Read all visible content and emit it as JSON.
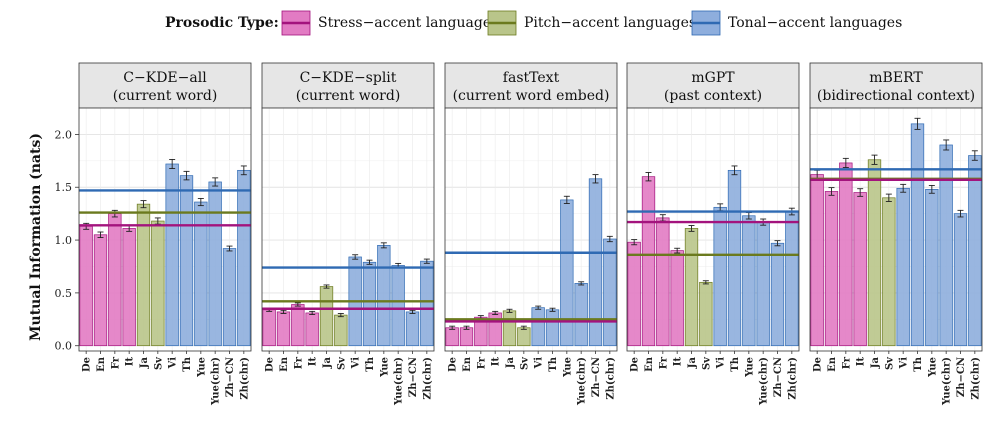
{
  "legend": {
    "title": "Prosodic Type:",
    "entries": [
      {
        "key": "stress",
        "label": "Stress−accent languages",
        "fill": "#e27bc3",
        "line": "#a3137d"
      },
      {
        "key": "pitch",
        "label": "Pitch−accent languages",
        "fill": "#b9c58a",
        "line": "#6b7a1e"
      },
      {
        "key": "tonal",
        "label": "Tonal−accent languages",
        "fill": "#8eaedd",
        "line": "#2f6ab3"
      }
    ]
  },
  "chart_data": {
    "type": "bar",
    "ylabel": "Mutual Information (nats)",
    "ylim": [
      -0.05,
      2.25
    ],
    "yticks": [
      0.0,
      0.5,
      1.0,
      1.5,
      2.0
    ],
    "ytick_labels": [
      "0.0",
      "0.5",
      "1.0",
      "1.5",
      "2.0"
    ],
    "categories": [
      "De",
      "En",
      "Fr",
      "It",
      "Ja",
      "Sv",
      "Vi",
      "Th",
      "Yue",
      "Yue(chr)",
      "Zh−CN",
      "Zh(chr)"
    ],
    "panels": [
      {
        "title_line1": "C−KDE−all",
        "title_line2": "(current word)",
        "bars": [
          {
            "cat": "De",
            "value": 1.13,
            "type": "stress"
          },
          {
            "cat": "En",
            "value": 1.05,
            "type": "stress"
          },
          {
            "cat": "Fr",
            "value": 1.25,
            "type": "stress"
          },
          {
            "cat": "It",
            "value": 1.11,
            "type": "stress"
          },
          {
            "cat": "Ja",
            "value": 1.34,
            "type": "pitch"
          },
          {
            "cat": "Sv",
            "value": 1.18,
            "type": "pitch"
          },
          {
            "cat": "Vi",
            "value": 1.72,
            "type": "tonal"
          },
          {
            "cat": "Th",
            "value": 1.61,
            "type": "tonal"
          },
          {
            "cat": "Yue",
            "value": 1.36,
            "type": "tonal"
          },
          {
            "cat": "Yue(chr)",
            "value": 1.55,
            "type": "tonal"
          },
          {
            "cat": "Zh−CN",
            "value": 0.92,
            "type": "tonal"
          },
          {
            "cat": "Zh(chr)",
            "value": 1.66,
            "type": "tonal"
          }
        ],
        "means": {
          "stress": 1.14,
          "pitch": 1.26,
          "tonal": 1.47
        }
      },
      {
        "title_line1": "C−KDE−split",
        "title_line2": "(current word)",
        "bars": [
          {
            "cat": "De",
            "value": 0.34,
            "type": "stress"
          },
          {
            "cat": "En",
            "value": 0.32,
            "type": "stress"
          },
          {
            "cat": "Fr",
            "value": 0.39,
            "type": "stress"
          },
          {
            "cat": "It",
            "value": 0.31,
            "type": "stress"
          },
          {
            "cat": "Ja",
            "value": 0.56,
            "type": "pitch"
          },
          {
            "cat": "Sv",
            "value": 0.29,
            "type": "pitch"
          },
          {
            "cat": "Vi",
            "value": 0.84,
            "type": "tonal"
          },
          {
            "cat": "Th",
            "value": 0.79,
            "type": "tonal"
          },
          {
            "cat": "Yue",
            "value": 0.95,
            "type": "tonal"
          },
          {
            "cat": "Yue(chr)",
            "value": 0.76,
            "type": "tonal"
          },
          {
            "cat": "Zh−CN",
            "value": 0.32,
            "type": "tonal"
          },
          {
            "cat": "Zh(chr)",
            "value": 0.8,
            "type": "tonal"
          }
        ],
        "means": {
          "stress": 0.35,
          "pitch": 0.42,
          "tonal": 0.74
        }
      },
      {
        "title_line1": "fastText",
        "title_line2": "(current word embed)",
        "bars": [
          {
            "cat": "De",
            "value": 0.17,
            "type": "stress"
          },
          {
            "cat": "En",
            "value": 0.17,
            "type": "stress"
          },
          {
            "cat": "Fr",
            "value": 0.27,
            "type": "stress"
          },
          {
            "cat": "It",
            "value": 0.31,
            "type": "stress"
          },
          {
            "cat": "Ja",
            "value": 0.33,
            "type": "pitch"
          },
          {
            "cat": "Sv",
            "value": 0.17,
            "type": "pitch"
          },
          {
            "cat": "Vi",
            "value": 0.36,
            "type": "tonal"
          },
          {
            "cat": "Th",
            "value": 0.34,
            "type": "tonal"
          },
          {
            "cat": "Yue",
            "value": 1.38,
            "type": "tonal"
          },
          {
            "cat": "Yue(chr)",
            "value": 0.59,
            "type": "tonal"
          },
          {
            "cat": "Zh−CN",
            "value": 1.58,
            "type": "tonal"
          },
          {
            "cat": "Zh(chr)",
            "value": 1.01,
            "type": "tonal"
          }
        ],
        "means": {
          "stress": 0.23,
          "pitch": 0.25,
          "tonal": 0.88
        }
      },
      {
        "title_line1": "mGPT",
        "title_line2": "(past context)",
        "bars": [
          {
            "cat": "De",
            "value": 0.98,
            "type": "stress"
          },
          {
            "cat": "En",
            "value": 1.6,
            "type": "stress"
          },
          {
            "cat": "Fr",
            "value": 1.21,
            "type": "stress"
          },
          {
            "cat": "It",
            "value": 0.9,
            "type": "stress"
          },
          {
            "cat": "Ja",
            "value": 1.11,
            "type": "pitch"
          },
          {
            "cat": "Sv",
            "value": 0.6,
            "type": "pitch"
          },
          {
            "cat": "Vi",
            "value": 1.31,
            "type": "tonal"
          },
          {
            "cat": "Th",
            "value": 1.66,
            "type": "tonal"
          },
          {
            "cat": "Yue",
            "value": 1.23,
            "type": "tonal"
          },
          {
            "cat": "Yue(chr)",
            "value": 1.17,
            "type": "tonal"
          },
          {
            "cat": "Zh−CN",
            "value": 0.97,
            "type": "tonal"
          },
          {
            "cat": "Zh(chr)",
            "value": 1.27,
            "type": "tonal"
          }
        ],
        "means": {
          "stress": 1.17,
          "pitch": 0.86,
          "tonal": 1.27
        }
      },
      {
        "title_line1": "mBERT",
        "title_line2": "(bidirectional context)",
        "bars": [
          {
            "cat": "De",
            "value": 1.62,
            "type": "stress"
          },
          {
            "cat": "En",
            "value": 1.46,
            "type": "stress"
          },
          {
            "cat": "Fr",
            "value": 1.73,
            "type": "stress"
          },
          {
            "cat": "It",
            "value": 1.45,
            "type": "stress"
          },
          {
            "cat": "Ja",
            "value": 1.76,
            "type": "pitch"
          },
          {
            "cat": "Sv",
            "value": 1.4,
            "type": "pitch"
          },
          {
            "cat": "Vi",
            "value": 1.49,
            "type": "tonal"
          },
          {
            "cat": "Th",
            "value": 2.1,
            "type": "tonal"
          },
          {
            "cat": "Yue",
            "value": 1.48,
            "type": "tonal"
          },
          {
            "cat": "Yue(chr)",
            "value": 1.9,
            "type": "tonal"
          },
          {
            "cat": "Zh−CN",
            "value": 1.25,
            "type": "tonal"
          },
          {
            "cat": "Zh(chr)",
            "value": 1.8,
            "type": "tonal"
          }
        ],
        "means": {
          "stress": 1.57,
          "pitch": 1.58,
          "tonal": 1.67
        }
      }
    ]
  }
}
